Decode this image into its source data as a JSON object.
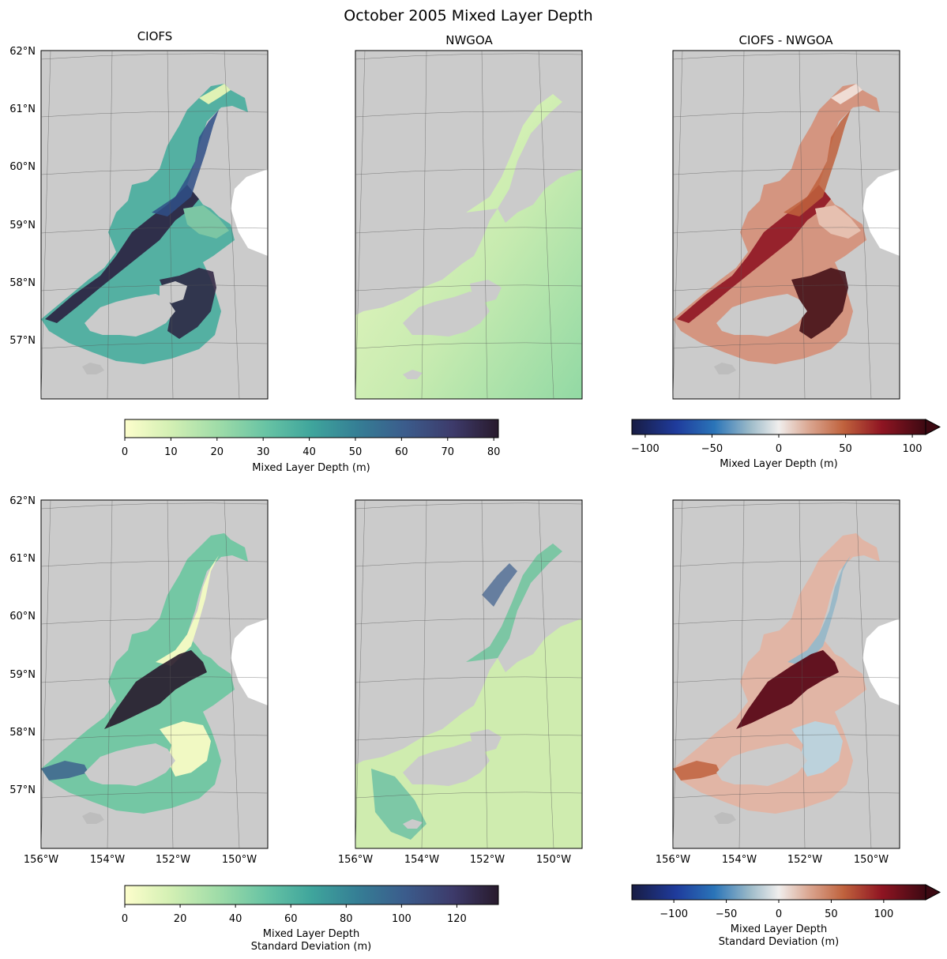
{
  "figure": {
    "title": "October 2005 Mixed Layer Depth"
  },
  "panels": {
    "top_left": {
      "title": "CIOFS"
    },
    "top_mid": {
      "title": "NWGOA"
    },
    "top_right": {
      "title": "CIOFS - NWGOA"
    },
    "bot_left": {
      "title": ""
    },
    "bot_mid": {
      "title": ""
    },
    "bot_right": {
      "title": ""
    }
  },
  "axes": {
    "lat_labels": [
      "62°N",
      "61°N",
      "60°N",
      "59°N",
      "58°N",
      "57°N"
    ],
    "lon_labels": [
      "156°W",
      "154°W",
      "152°W",
      "150°W"
    ]
  },
  "colorbars": {
    "top_seq": {
      "label": "Mixed Layer Depth (m)",
      "ticks": [
        "0",
        "10",
        "20",
        "30",
        "40",
        "50",
        "60",
        "70",
        "80"
      ],
      "range": [
        0,
        81
      ],
      "colormap": "deep"
    },
    "top_div": {
      "label": "Mixed Layer Depth (m)",
      "ticks": [
        "−100",
        "−50",
        "0",
        "50",
        "100"
      ],
      "range": [
        -110,
        110
      ],
      "colormap": "balance",
      "extend": "max"
    },
    "bot_seq": {
      "label_line1": "Mixed Layer Depth",
      "label_line2": "Standard Deviation (m)",
      "ticks": [
        "0",
        "20",
        "40",
        "60",
        "80",
        "100",
        "120"
      ],
      "range": [
        0,
        135
      ],
      "colormap": "deep"
    },
    "bot_div": {
      "label_line1": "Mixed Layer Depth",
      "label_line2": "Standard Deviation (m)",
      "ticks": [
        "−100",
        "−50",
        "0",
        "50",
        "100"
      ],
      "range": [
        -140,
        140
      ],
      "colormap": "balance",
      "extend": "max"
    }
  },
  "colors": {
    "land": "#cbcbcb",
    "water_bg": "#ffffff",
    "gridline": "#555555",
    "deep_low": "#fdfecc",
    "deep_mid": "#5ab9a3",
    "deep_high": "#281a2c",
    "balance_low": "#181c43",
    "balance_zero": "#f0eeed",
    "balance_high": "#3c0912"
  }
}
